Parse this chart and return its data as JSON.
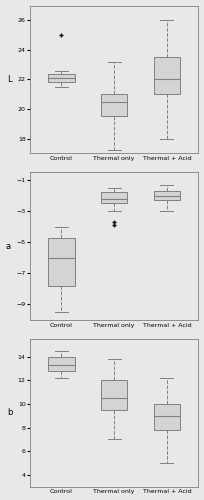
{
  "categories": [
    "Control",
    "Thermal only",
    "Thermal + Acid"
  ],
  "subplot_labels": [
    "L",
    "a",
    "b"
  ],
  "background_color": "#e8e8e8",
  "box_color": "#c8c8c8",
  "L": {
    "control": {
      "q1": 21.8,
      "median": 22.1,
      "q3": 22.4,
      "whislo": 21.5,
      "whishi": 22.6,
      "fliers": [
        25.0
      ]
    },
    "thermal_only": {
      "q1": 19.5,
      "median": 20.5,
      "q3": 21.0,
      "whislo": 17.2,
      "whishi": 23.2,
      "fliers": []
    },
    "thermal_acid": {
      "q1": 21.0,
      "median": 22.0,
      "q3": 23.5,
      "whislo": 18.0,
      "whishi": 26.0,
      "fliers": []
    }
  },
  "L_ylim": [
    17,
    27
  ],
  "L_yticks": [
    18,
    20,
    22,
    24,
    26
  ],
  "a": {
    "control": {
      "q1": -7.8,
      "median": -6.0,
      "q3": -4.7,
      "whislo": -9.5,
      "whishi": -4.0,
      "fliers": []
    },
    "thermal_only": {
      "q1": -2.5,
      "median": -2.2,
      "q3": -1.8,
      "whislo": -3.0,
      "whishi": -1.5,
      "fliers": [
        -3.7,
        -3.9
      ]
    },
    "thermal_acid": {
      "q1": -2.3,
      "median": -2.0,
      "q3": -1.7,
      "whislo": -3.0,
      "whishi": -1.3,
      "fliers": []
    }
  },
  "a_ylim": [
    -10,
    -0.5
  ],
  "a_yticks": [
    -9,
    -7,
    -5,
    -3,
    -1
  ],
  "b": {
    "control": {
      "q1": 12.8,
      "median": 13.3,
      "q3": 14.0,
      "whislo": 12.2,
      "whishi": 14.5,
      "fliers": []
    },
    "thermal_only": {
      "q1": 9.5,
      "median": 10.5,
      "q3": 12.0,
      "whislo": 7.0,
      "whishi": 13.8,
      "fliers": []
    },
    "thermal_acid": {
      "q1": 7.8,
      "median": 9.0,
      "q3": 10.0,
      "whislo": 5.0,
      "whishi": 12.2,
      "fliers": []
    }
  },
  "b_ylim": [
    3,
    15.5
  ],
  "b_yticks": [
    4,
    6,
    8,
    10,
    12,
    14
  ]
}
